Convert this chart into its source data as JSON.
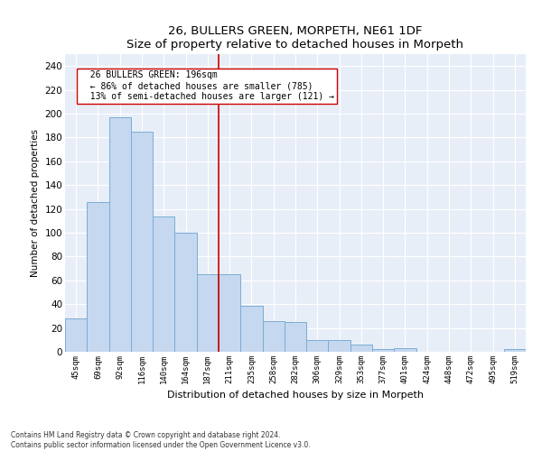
{
  "title1": "26, BULLERS GREEN, MORPETH, NE61 1DF",
  "title2": "Size of property relative to detached houses in Morpeth",
  "xlabel": "Distribution of detached houses by size in Morpeth",
  "ylabel": "Number of detached properties",
  "bar_color": "#c5d8ef",
  "bar_edge_color": "#7aadd4",
  "background_color": "#e8eef8",
  "categories": [
    "45sqm",
    "69sqm",
    "92sqm",
    "116sqm",
    "140sqm",
    "164sqm",
    "187sqm",
    "211sqm",
    "235sqm",
    "258sqm",
    "282sqm",
    "306sqm",
    "329sqm",
    "353sqm",
    "377sqm",
    "401sqm",
    "424sqm",
    "448sqm",
    "472sqm",
    "495sqm",
    "519sqm"
  ],
  "values": [
    28,
    126,
    197,
    185,
    114,
    100,
    65,
    65,
    39,
    26,
    25,
    10,
    10,
    6,
    2,
    3,
    0,
    0,
    0,
    0,
    2
  ],
  "ylim": [
    0,
    250
  ],
  "yticks": [
    0,
    20,
    40,
    60,
    80,
    100,
    120,
    140,
    160,
    180,
    200,
    220,
    240
  ],
  "vline_color": "#cc0000",
  "annotation_line1": "  26 BULLERS GREEN: 196sqm",
  "annotation_line2": "  ← 86% of detached houses are smaller (785)",
  "annotation_line3": "  13% of semi-detached houses are larger (121) →",
  "annotation_box_color": "#ffffff",
  "annotation_box_edge_color": "#cc0000",
  "footnote1": "Contains HM Land Registry data © Crown copyright and database right 2024.",
  "footnote2": "Contains public sector information licensed under the Open Government Licence v3.0."
}
